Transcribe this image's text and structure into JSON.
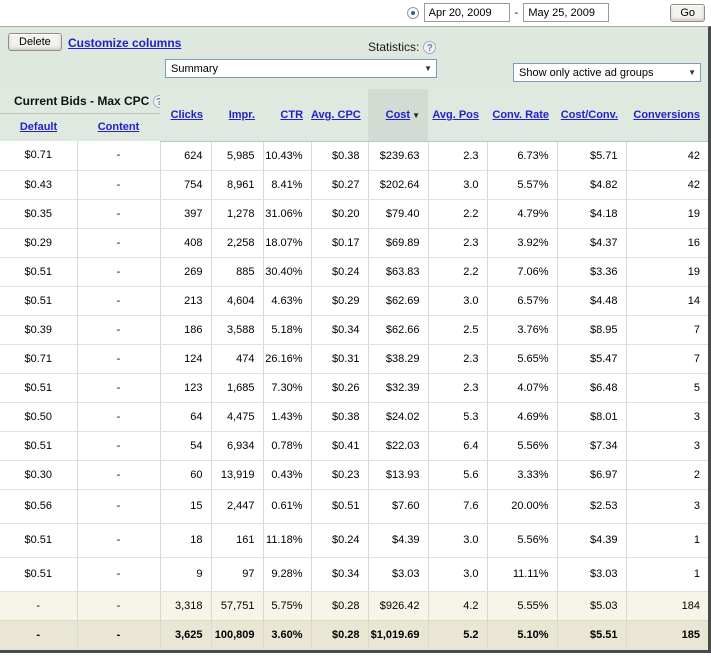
{
  "date_bar": {
    "start_date": "Apr 20, 2009",
    "separator": "-",
    "end_date": "May 25, 2009",
    "go_label": "Go"
  },
  "toolbar": {
    "delete_label": "Delete",
    "customize_link": "Customize columns",
    "statistics_label": "Statistics:",
    "summary_value": "Summary",
    "filter_value": "Show only active ad groups",
    "help_icon_glyph": "?",
    "dropdown_arrow_glyph": "▼"
  },
  "table": {
    "group_header_label": "Current Bids - Max CPC",
    "sub_headers": {
      "default": "Default",
      "content": "Content"
    },
    "columns": [
      "Clicks",
      "Impr.",
      "CTR",
      "Avg. CPC",
      "Cost",
      "Avg. Pos",
      "Conv. Rate",
      "Cost/Conv.",
      "Conversions"
    ],
    "sorted_column": "Cost",
    "sort_indicator": "▼",
    "rows": [
      [
        "$0.71",
        "-",
        "624",
        "5,985",
        "10.43%",
        "$0.38",
        "$239.63",
        "2.3",
        "6.73%",
        "$5.71",
        "42"
      ],
      [
        "$0.43",
        "-",
        "754",
        "8,961",
        "8.41%",
        "$0.27",
        "$202.64",
        "3.0",
        "5.57%",
        "$4.82",
        "42"
      ],
      [
        "$0.35",
        "-",
        "397",
        "1,278",
        "31.06%",
        "$0.20",
        "$79.40",
        "2.2",
        "4.79%",
        "$4.18",
        "19"
      ],
      [
        "$0.29",
        "-",
        "408",
        "2,258",
        "18.07%",
        "$0.17",
        "$69.89",
        "2.3",
        "3.92%",
        "$4.37",
        "16"
      ],
      [
        "$0.51",
        "-",
        "269",
        "885",
        "30.40%",
        "$0.24",
        "$63.83",
        "2.2",
        "7.06%",
        "$3.36",
        "19"
      ],
      [
        "$0.51",
        "-",
        "213",
        "4,604",
        "4.63%",
        "$0.29",
        "$62.69",
        "3.0",
        "6.57%",
        "$4.48",
        "14"
      ],
      [
        "$0.39",
        "-",
        "186",
        "3,588",
        "5.18%",
        "$0.34",
        "$62.66",
        "2.5",
        "3.76%",
        "$8.95",
        "7"
      ],
      [
        "$0.71",
        "-",
        "124",
        "474",
        "26.16%",
        "$0.31",
        "$38.29",
        "2.3",
        "5.65%",
        "$5.47",
        "7"
      ],
      [
        "$0.51",
        "-",
        "123",
        "1,685",
        "7.30%",
        "$0.26",
        "$32.39",
        "2.3",
        "4.07%",
        "$6.48",
        "5"
      ],
      [
        "$0.50",
        "-",
        "64",
        "4,475",
        "1.43%",
        "$0.38",
        "$24.02",
        "5.3",
        "4.69%",
        "$8.01",
        "3"
      ],
      [
        "$0.51",
        "-",
        "54",
        "6,934",
        "0.78%",
        "$0.41",
        "$22.03",
        "6.4",
        "5.56%",
        "$7.34",
        "3"
      ],
      [
        "$0.30",
        "-",
        "60",
        "13,919",
        "0.43%",
        "$0.23",
        "$13.93",
        "5.6",
        "3.33%",
        "$6.97",
        "2"
      ],
      [
        "$0.56",
        "-",
        "15",
        "2,447",
        "0.61%",
        "$0.51",
        "$7.60",
        "7.6",
        "20.00%",
        "$2.53",
        "3"
      ],
      [
        "$0.51",
        "-",
        "18",
        "161",
        "11.18%",
        "$0.24",
        "$4.39",
        "3.0",
        "5.56%",
        "$4.39",
        "1"
      ],
      [
        "$0.51",
        "-",
        "9",
        "97",
        "9.28%",
        "$0.34",
        "$3.03",
        "3.0",
        "11.11%",
        "$3.03",
        "1"
      ]
    ],
    "subtotal_row": [
      "-",
      "-",
      "3,318",
      "57,751",
      "5.75%",
      "$0.28",
      "$926.42",
      "4.2",
      "5.55%",
      "$5.03",
      "184"
    ],
    "total_row": [
      "-",
      "-",
      "3,625",
      "100,809",
      "3.60%",
      "$0.28",
      "$1,019.69",
      "5.2",
      "5.10%",
      "$5.51",
      "185"
    ]
  },
  "colors": {
    "panel_background": "#dee8de",
    "sorted_column_header": "#d2dcd2",
    "subtotal_background": "#f7f5e8",
    "total_background": "#e9e6d4",
    "link_blue": "#2121c8",
    "frame_dark": "#4a4a4a"
  }
}
